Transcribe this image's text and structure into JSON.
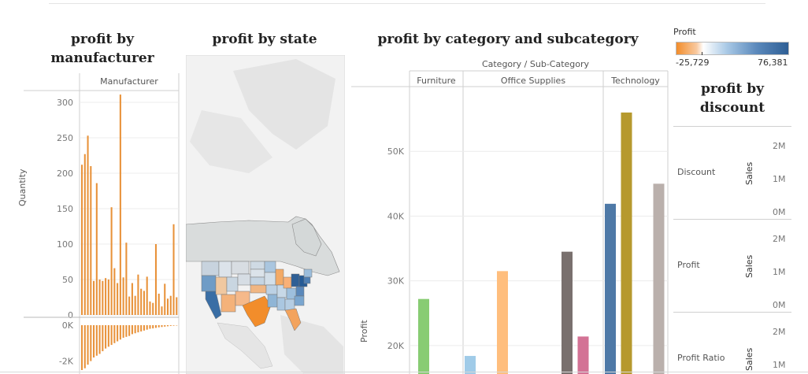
{
  "colors": {
    "orange": "#e8923a",
    "grid": "#ececec",
    "axis": "#cfcfcf",
    "map_bg": "#f2f2f2",
    "land": "#e2e2e2",
    "profit_low": "#f7a35c",
    "profit_mid": "#d9e8f3",
    "profit_high": "#2f5f95"
  },
  "titles": {
    "manufacturer": "profit by manufacturer",
    "state": "profit by state",
    "category": "profit by category and subcategory",
    "discount": "profit by discount"
  },
  "legend": {
    "title": "Profit",
    "min_label": "-25,729",
    "max_label": "76,381"
  },
  "chart_data": [
    {
      "type": "bar",
      "title": "profit by manufacturer",
      "column_header": "Manufacturer",
      "ylabel": "Quantity",
      "ylim": [
        0,
        320
      ],
      "yticks": [
        0,
        50,
        100,
        150,
        200,
        250,
        300
      ],
      "values": [
        212,
        227,
        253,
        210,
        48,
        186,
        50,
        48,
        52,
        50,
        152,
        66,
        45,
        311,
        53,
        102,
        26,
        45,
        27,
        57,
        37,
        34,
        54,
        19,
        17,
        100,
        30,
        12,
        44,
        23,
        27,
        128,
        25
      ],
      "lower": {
        "ylim": [
          -2500,
          0
        ],
        "yticks": [
          0,
          -2000
        ],
        "ytick_labels": [
          "0K",
          "-2K"
        ],
        "values": [
          -2500,
          -2400,
          -2200,
          -2000,
          -1800,
          -1700,
          -1600,
          -1450,
          -1300,
          -1200,
          -1100,
          -1000,
          -900,
          -800,
          -700,
          -650,
          -600,
          -500,
          -450,
          -400,
          -350,
          -300,
          -250,
          -200,
          -180,
          -150,
          -120,
          -100,
          -80,
          -60,
          -40,
          -30,
          -20
        ]
      }
    },
    {
      "type": "map",
      "title": "profit by state"
    },
    {
      "type": "bar",
      "title": "profit by category and subcategory",
      "header": "Category / Sub-Category",
      "groups": [
        "Furniture",
        "Office Supplies",
        "Technology"
      ],
      "ylabel": "Profit",
      "ylim": [
        15000,
        60000
      ],
      "yticks": [
        20000,
        30000,
        40000,
        50000
      ],
      "ytick_labels": [
        "20K",
        "30K",
        "40K",
        "50K"
      ],
      "series": [
        {
          "group": "Furniture",
          "value": 27200,
          "color": "#88cc73"
        },
        {
          "group": "Furniture",
          "value": 13500,
          "color": "#86bcb6"
        },
        {
          "group": "Office Supplies",
          "value": 18400,
          "color": "#a0cbe8"
        },
        {
          "group": "Office Supplies",
          "value": 31500,
          "color": "#ffbe7d"
        },
        {
          "group": "Office Supplies",
          "value": 34500,
          "color": "#79706e"
        },
        {
          "group": "Office Supplies",
          "value": 21400,
          "color": "#d37295"
        },
        {
          "group": "Technology",
          "value": 41900,
          "color": "#4e79a7"
        },
        {
          "group": "Technology",
          "value": 56000,
          "color": "#b6992d"
        },
        {
          "group": "Technology",
          "value": 45000,
          "color": "#bab0ac"
        }
      ]
    },
    {
      "type": "table",
      "title": "profit by discount",
      "rows": [
        {
          "label": "Discount",
          "axis": "Sales",
          "ticks": [
            "2M",
            "1M",
            "0M"
          ]
        },
        {
          "label": "Profit",
          "axis": "Sales",
          "ticks": [
            "2M",
            "1M",
            "0M"
          ]
        },
        {
          "label": "Profit Ratio",
          "axis": "Sales",
          "ticks": [
            "2M",
            "1M"
          ]
        }
      ]
    }
  ]
}
